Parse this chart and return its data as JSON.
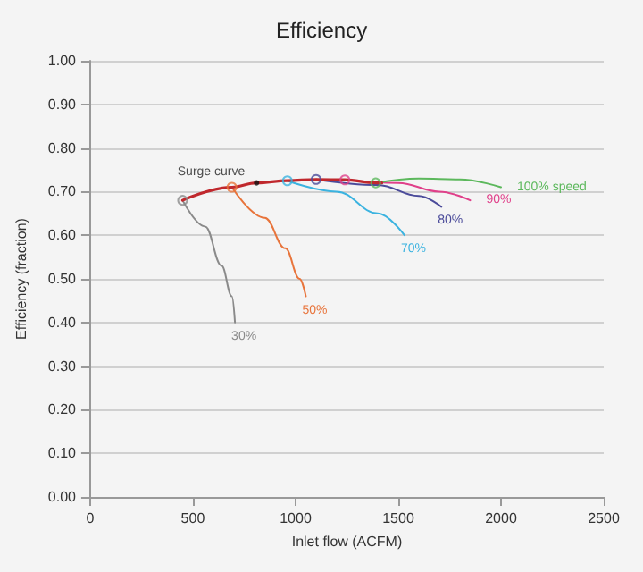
{
  "chart_data": {
    "type": "line",
    "title": "Efficiency",
    "xlabel": "Inlet flow (ACFM)",
    "ylabel": "Efficiency (fraction)",
    "xlim": [
      0,
      2500
    ],
    "xticks": [
      0,
      500,
      1000,
      1500,
      2000,
      2500
    ],
    "ylim": [
      0,
      1
    ],
    "yticks": [
      {
        "value": 0,
        "label": "0.00"
      },
      {
        "value": 0.1,
        "label": "0.10"
      },
      {
        "value": 0.2,
        "label": "0.20"
      },
      {
        "value": 0.3,
        "label": "0.30"
      },
      {
        "value": 0.4,
        "label": "0.40"
      },
      {
        "value": 0.5,
        "label": "0.50"
      },
      {
        "value": 0.6,
        "label": "0.60"
      },
      {
        "value": 0.7,
        "label": "0.70"
      },
      {
        "value": 0.8,
        "label": "0.80"
      },
      {
        "value": 0.9,
        "label": "0.90"
      },
      {
        "value": 1,
        "label": "1.00"
      }
    ],
    "grid": "y",
    "legend": false,
    "marker": "none",
    "line_style": "solid",
    "annotations": [
      {
        "text": "Surge curve",
        "x": 810,
        "y": 0.72
      }
    ],
    "series": [
      {
        "name": "30%",
        "color": "#8a8a8a",
        "x": [
          450,
          560,
          640,
          690,
          705
        ],
        "values": [
          0.68,
          0.62,
          0.53,
          0.46,
          0.4
        ]
      },
      {
        "name": "50%",
        "color": "#e8743b",
        "x": [
          690,
          850,
          950,
          1020,
          1050
        ],
        "values": [
          0.71,
          0.64,
          0.57,
          0.5,
          0.46
        ]
      },
      {
        "name": "70%",
        "color": "#3bb3e0",
        "x": [
          960,
          1200,
          1400,
          1530
        ],
        "values": [
          0.725,
          0.7,
          0.65,
          0.6
        ]
      },
      {
        "name": "80%",
        "color": "#4b4b9a",
        "x": [
          1100,
          1400,
          1600,
          1710
        ],
        "values": [
          0.728,
          0.715,
          0.69,
          0.665
        ]
      },
      {
        "name": "90%",
        "color": "#e0408a",
        "x": [
          1240,
          1500,
          1700,
          1850
        ],
        "values": [
          0.727,
          0.72,
          0.7,
          0.68
        ]
      },
      {
        "name": "100% speed",
        "color": "#5cb85c",
        "x": [
          1390,
          1600,
          1800,
          2000
        ],
        "values": [
          0.72,
          0.73,
          0.728,
          0.71
        ]
      },
      {
        "color": "#c0282d",
        "x": [
          450,
          690,
          810,
          960,
          1100,
          1240,
          1390,
          1420
        ],
        "values": [
          0.68,
          0.71,
          0.72,
          0.725,
          0.728,
          0.727,
          0.72,
          0.72
        ]
      },
      {
        "type": "scatter",
        "marker": "circle",
        "x": [
          450,
          690,
          960,
          1100,
          1240,
          1390
        ],
        "values": [
          0.68,
          0.71,
          0.725,
          0.728,
          0.727,
          0.72
        ],
        "colors": [
          "#8a8a8a",
          "#e8743b",
          "#3bb3e0",
          "#4b4b9a",
          "#e0408a",
          "#5cb85c"
        ]
      }
    ]
  }
}
